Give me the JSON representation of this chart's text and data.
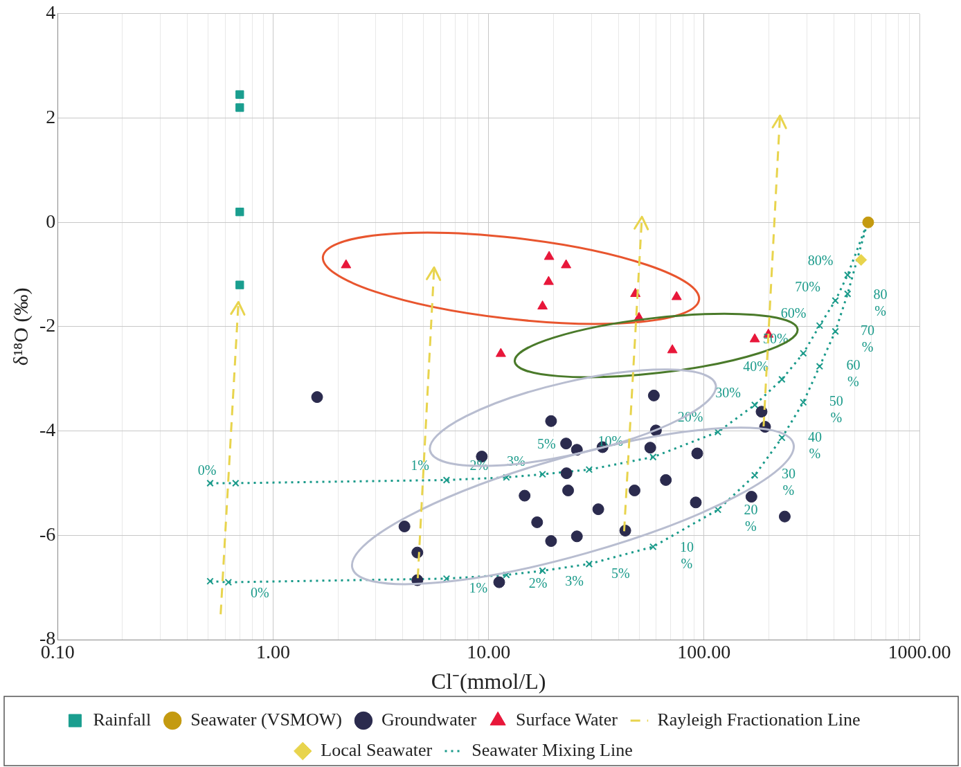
{
  "chart_data": {
    "type": "scatter",
    "xlabel": "Cl⁻(mmol/L)",
    "ylabel": "δ¹⁸O (‰)",
    "log": "x",
    "xlim": [
      0.1,
      1000
    ],
    "ylim": [
      -8,
      4
    ],
    "xticks": [
      {
        "value": 0.1,
        "label": "0.10"
      },
      {
        "value": 0.2,
        "label": null
      },
      {
        "value": 0.3,
        "label": null
      },
      {
        "value": 0.4,
        "label": null
      },
      {
        "value": 0.5,
        "label": null
      },
      {
        "value": 0.6,
        "label": null
      },
      {
        "value": 0.7,
        "label": null
      },
      {
        "value": 0.8,
        "label": null
      },
      {
        "value": 0.9,
        "label": null
      },
      {
        "value": 1,
        "label": "1.00"
      },
      {
        "value": 2,
        "label": null
      },
      {
        "value": 3,
        "label": null
      },
      {
        "value": 4,
        "label": null
      },
      {
        "value": 5,
        "label": null
      },
      {
        "value": 6,
        "label": null
      },
      {
        "value": 7,
        "label": null
      },
      {
        "value": 8,
        "label": null
      },
      {
        "value": 9,
        "label": null
      },
      {
        "value": 10,
        "label": "10.00"
      },
      {
        "value": 20,
        "label": null
      },
      {
        "value": 30,
        "label": null
      },
      {
        "value": 40,
        "label": null
      },
      {
        "value": 50,
        "label": null
      },
      {
        "value": 60,
        "label": null
      },
      {
        "value": 70,
        "label": null
      },
      {
        "value": 80,
        "label": null
      },
      {
        "value": 90,
        "label": null
      },
      {
        "value": 100,
        "label": "100.00"
      },
      {
        "value": 200,
        "label": null
      },
      {
        "value": 300,
        "label": null
      },
      {
        "value": 400,
        "label": null
      },
      {
        "value": 500,
        "label": null
      },
      {
        "value": 600,
        "label": null
      },
      {
        "value": 700,
        "label": null
      },
      {
        "value": 800,
        "label": null
      },
      {
        "value": 900,
        "label": null
      },
      {
        "value": 1000,
        "label": "1000.00"
      }
    ],
    "yticks": [
      -8,
      -6,
      -4,
      -2,
      0,
      2,
      4
    ],
    "grid": true,
    "legend": "bottom",
    "series": [
      {
        "name": "Rainfall",
        "marker": "square",
        "color": "#1a9e8f",
        "x": [
          0.7,
          0.7,
          0.7,
          0.7
        ],
        "values": [
          2.45,
          2.2,
          0.2,
          -1.2
        ]
      },
      {
        "name": "Seawater (VSMOW)",
        "marker": "circle",
        "color": "#c49a10",
        "x": [
          578
        ],
        "values": [
          0
        ]
      },
      {
        "name": "Groundwater",
        "marker": "circle",
        "color": "#2b2b4e",
        "x": [
          1.6,
          58.5,
          19.5,
          59.8,
          185,
          192,
          9.3,
          22.9,
          25.7,
          33.8,
          56.3,
          93,
          23,
          14.7,
          23.4,
          47.6,
          66.5,
          91.6,
          166,
          237,
          32.3,
          16.8,
          4.07,
          19.5,
          25.7,
          43.1,
          4.67,
          4.67,
          11.2
        ],
        "values": [
          -3.35,
          -3.32,
          -3.81,
          -3.99,
          -3.63,
          -3.92,
          -4.49,
          -4.24,
          -4.36,
          -4.31,
          -4.32,
          -4.43,
          -4.81,
          -5.24,
          -5.14,
          -5.14,
          -4.94,
          -5.37,
          -5.26,
          -5.64,
          -5.5,
          -5.75,
          -5.83,
          -6.11,
          -6.02,
          -5.91,
          -6.33,
          -6.86,
          -6.9
        ]
      },
      {
        "name": "Surface Water",
        "marker": "triangle",
        "color": "#e8173a",
        "x": [
          2.18,
          19.1,
          22.9,
          19,
          17.8,
          11.4,
          48,
          74.6,
          49.9,
          71.3,
          172,
          199
        ],
        "values": [
          -0.82,
          -0.66,
          -0.82,
          -1.14,
          -1.61,
          -2.52,
          -1.37,
          -1.43,
          -1.83,
          -2.45,
          -2.24,
          -2.15
        ]
      },
      {
        "name": "Local Seawater",
        "marker": "diamond",
        "color": "#e8d44d",
        "x": [
          536
        ],
        "values": [
          -0.72
        ]
      },
      {
        "name": "Seawater Mixing Line",
        "type": "line",
        "marker": "cross",
        "line_style": "dotted",
        "color": "#1a9a8a",
        "x": [
          0.51,
          0.67,
          6.38,
          12.1,
          17.8,
          29.3,
          58,
          116,
          172,
          230,
          289,
          344,
          407,
          464,
          574
        ],
        "values": [
          -5,
          -5,
          -4.94,
          -4.89,
          -4.83,
          -4.74,
          -4.5,
          -4.02,
          -3.5,
          -3.01,
          -2.51,
          -1.98,
          -1.5,
          -1.01,
          0
        ]
      },
      {
        "type": "line",
        "marker": "cross",
        "line_style": "dotted",
        "color": "#1a9a8a",
        "x": [
          0.51,
          0.62,
          6.38,
          12.1,
          17.8,
          29.3,
          58,
          116,
          172,
          230,
          289,
          344,
          407,
          464,
          574
        ],
        "values": [
          -6.88,
          -6.9,
          -6.83,
          -6.76,
          -6.68,
          -6.55,
          -6.22,
          -5.51,
          -4.85,
          -4.13,
          -3.45,
          -2.76,
          -2.09,
          -1.37,
          0
        ]
      }
    ],
    "annotations": [
      "0%",
      "1%",
      "2%",
      "3%",
      "5%",
      "10%",
      "20%",
      "30%",
      "40%",
      "50%",
      "60%",
      "70%",
      "80%",
      "0%",
      "1%",
      "2%",
      "3%",
      "5%",
      "10\n%",
      "20\n%",
      "30\n%",
      "40\n%",
      "50\n%",
      "60\n%",
      "70\n%",
      "80\n%",
      "Rayleigh Fractionation Line"
    ]
  }
}
